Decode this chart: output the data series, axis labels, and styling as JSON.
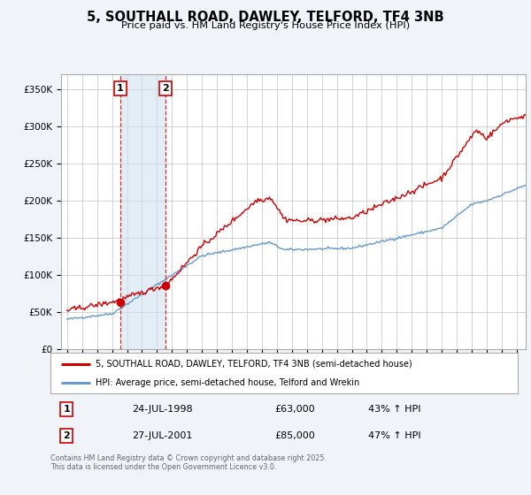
{
  "title": "5, SOUTHALL ROAD, DAWLEY, TELFORD, TF4 3NB",
  "subtitle": "Price paid vs. HM Land Registry's House Price Index (HPI)",
  "hpi_label": "HPI: Average price, semi-detached house, Telford and Wrekin",
  "property_label": "5, SOUTHALL ROAD, DAWLEY, TELFORD, TF4 3NB (semi-detached house)",
  "sale1_date": "24-JUL-1998",
  "sale1_price": 63000,
  "sale1_hpi": "43% ↑ HPI",
  "sale2_date": "27-JUL-2001",
  "sale2_price": 85000,
  "sale2_hpi": "47% ↑ HPI",
  "property_color": "#cc0000",
  "hpi_color": "#6699cc",
  "background_color": "#f0f4f8",
  "plot_bg_color": "#ffffff",
  "grid_color": "#cccccc",
  "ylim": [
    0,
    370000
  ],
  "xlim_start": 1994.6,
  "xlim_end": 2025.6,
  "sale1_year": 1998.55,
  "sale2_year": 2001.57,
  "footnote": "Contains HM Land Registry data © Crown copyright and database right 2025.\nThis data is licensed under the Open Government Licence v3.0."
}
